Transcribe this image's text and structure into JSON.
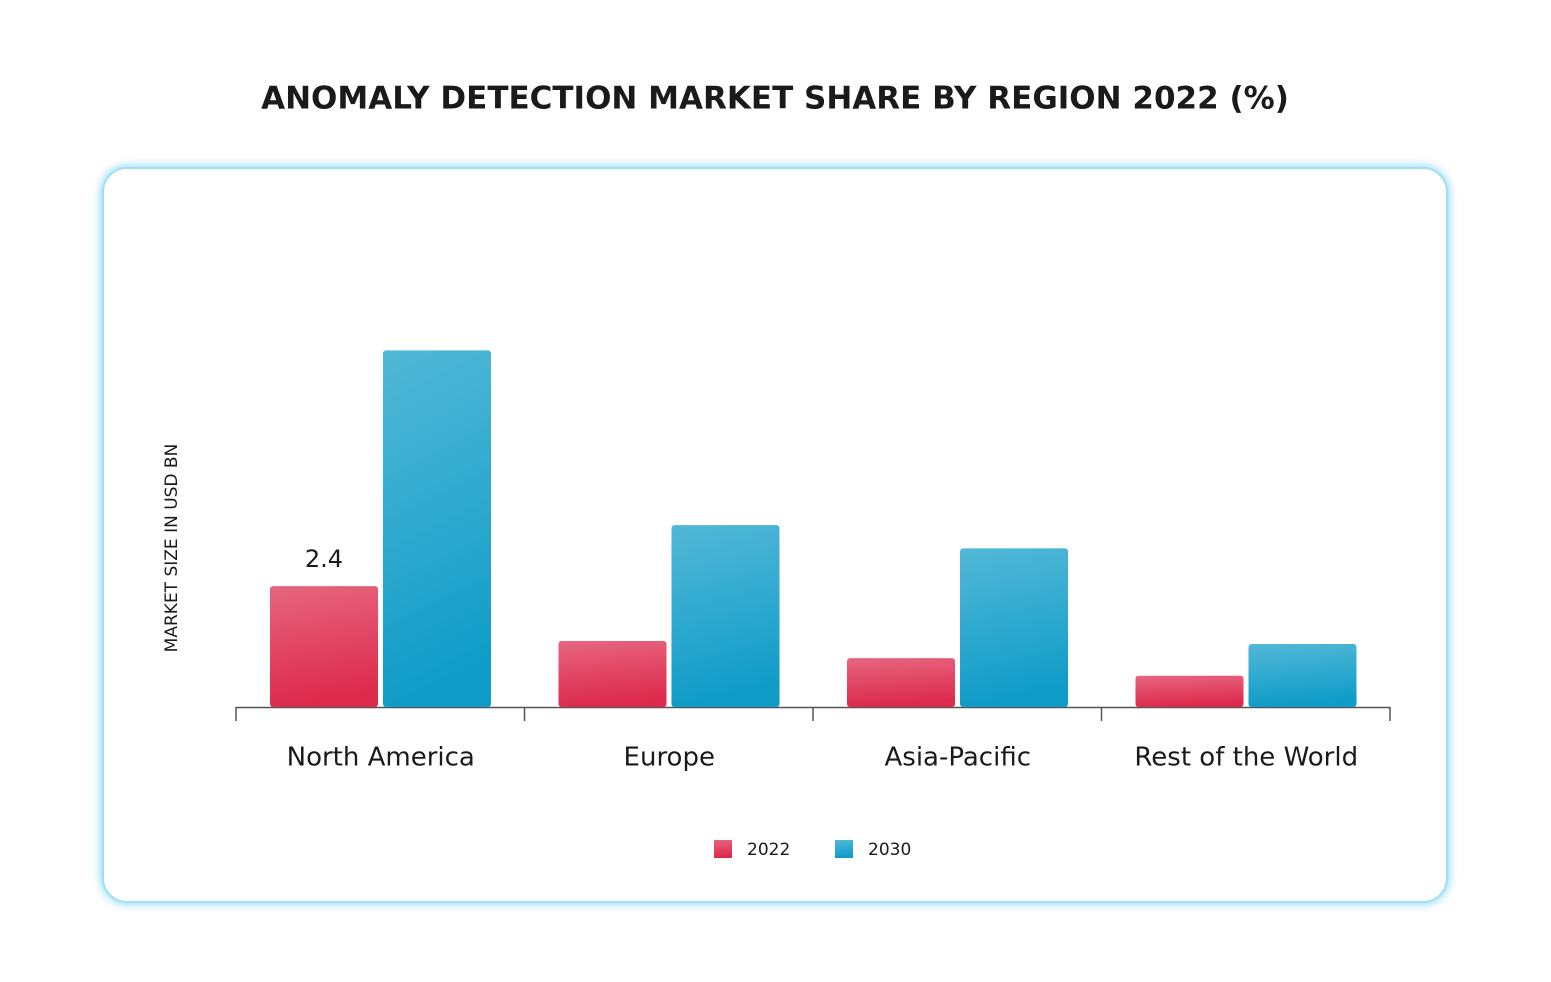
{
  "chart_data": {
    "type": "bar",
    "title": "ANOMALY DETECTION MARKET SHARE BY REGION 2022 (%)",
    "y_label": "MARKET SIZE IN USD BN",
    "categories": [
      "North America",
      "Europe",
      "Asia-Pacific",
      "Rest of the World"
    ],
    "series": [
      {
        "name": "2022",
        "color": "#dd2a4d",
        "values": [
          2.4,
          1.31,
          0.97,
          0.62
        ],
        "value_labels": [
          "2.4",
          null,
          null,
          null
        ]
      },
      {
        "name": "2030",
        "color": "#0f9cc8",
        "values": [
          7.08,
          3.61,
          3.15,
          1.25
        ]
      }
    ],
    "ylim": [
      0,
      8
    ]
  }
}
